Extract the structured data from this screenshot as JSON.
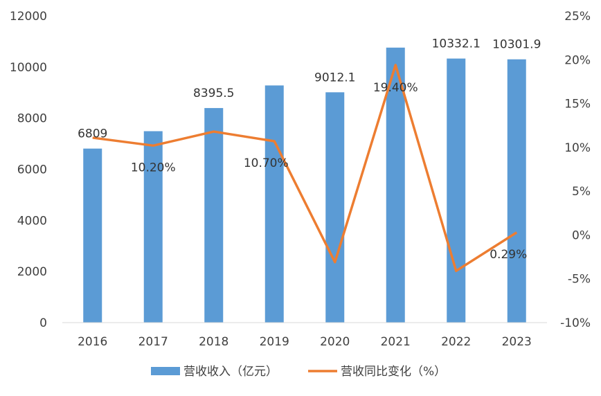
{
  "chart_data": {
    "type": "bar",
    "categories": [
      "2016",
      "2017",
      "2018",
      "2019",
      "2020",
      "2021",
      "2022",
      "2023"
    ],
    "series": [
      {
        "name": "营收收入（亿元）",
        "type": "bar",
        "axis": "left",
        "values": [
          6809,
          7490,
          8395.5,
          9280,
          9012.1,
          10760,
          10332.1,
          10301.9
        ],
        "color": "#5B9BD5",
        "data_labels": [
          "6809",
          "",
          "8395.5",
          "",
          "9012.1",
          "",
          "10332.1",
          "10301.9"
        ]
      },
      {
        "name": "营收同比变化（%）",
        "type": "line",
        "axis": "right",
        "values": [
          11.1,
          10.2,
          11.8,
          10.7,
          -3.1,
          19.4,
          -4.1,
          0.29
        ],
        "color": "#ED7D31",
        "data_labels": [
          "",
          "10.20%",
          "",
          "10.70%",
          "",
          "19.40%",
          "",
          "0.29%"
        ]
      }
    ],
    "y_left": {
      "ylim": [
        0,
        12000
      ],
      "ticks": [
        "0",
        "2000",
        "4000",
        "6000",
        "8000",
        "10000",
        "12000"
      ]
    },
    "y_right": {
      "ylim": [
        -10,
        25
      ],
      "ticks": [
        "-10%",
        "-5%",
        "0%",
        "5%",
        "10%",
        "15%",
        "20%",
        "25%"
      ]
    },
    "title": "",
    "xlabel": "",
    "ylabel": "",
    "grid": false,
    "legend_position": "bottom"
  }
}
